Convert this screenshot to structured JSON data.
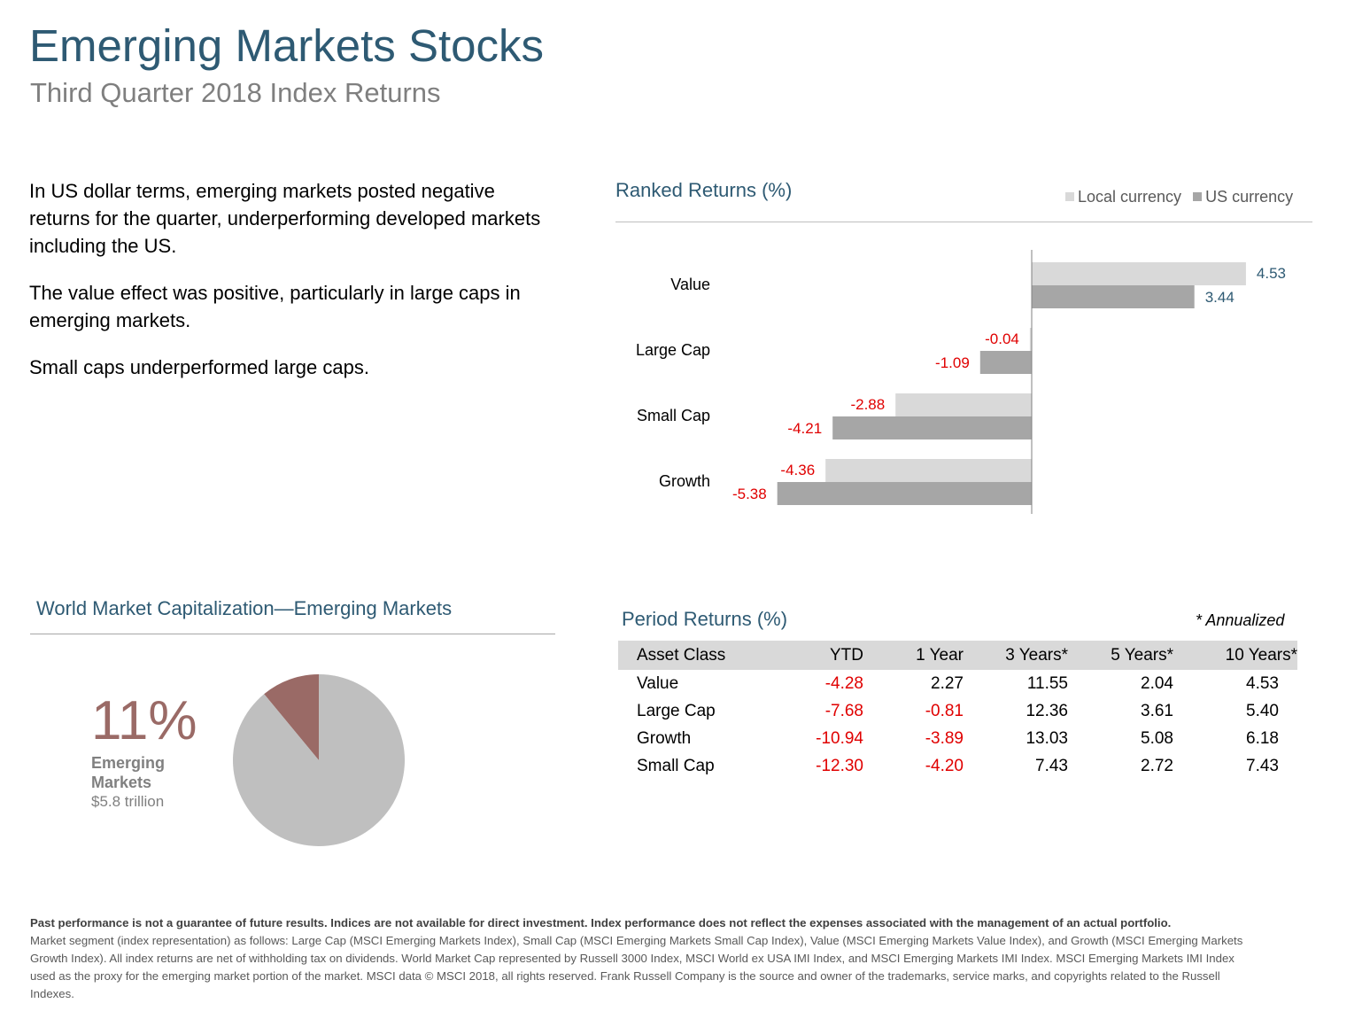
{
  "title": "Emerging Markets Stocks",
  "subtitle": "Third Quarter 2018 Index Returns",
  "commentary": [
    "In US dollar terms, emerging markets posted negative returns for the quarter, underperforming developed markets including the US.",
    "The value effect was positive, particularly in large caps in emerging markets.",
    "Small caps underperformed large caps."
  ],
  "ranked": {
    "title": "Ranked Returns (%)",
    "legend_local": "Local currency",
    "legend_us": "US currency"
  },
  "market_cap": {
    "title": "World Market Capitalization—Emerging Markets",
    "percent": "11%",
    "label": "Emerging Markets",
    "value": "$5.8 trillion"
  },
  "period": {
    "title": "Period Returns (%)",
    "annotation": "* Annualized",
    "headers": [
      "Asset Class",
      "YTD",
      "1 Year",
      "3 Years*",
      "5 Years*",
      "10 Years*"
    ],
    "rows": [
      [
        "Value",
        "-4.28",
        "2.27",
        "11.55",
        "2.04",
        "4.53"
      ],
      [
        "Large Cap",
        "-7.68",
        "-0.81",
        "12.36",
        "3.61",
        "5.40"
      ],
      [
        "Growth",
        "-10.94",
        "-3.89",
        "13.03",
        "5.08",
        "6.18"
      ],
      [
        "Small Cap",
        "-12.30",
        "-4.20",
        "7.43",
        "2.72",
        "7.43"
      ]
    ]
  },
  "footnote": {
    "bold": "Past performance is not a guarantee of future results. Indices are not available for direct investment. Index performance does not reflect the expenses associated with the management of an actual portfolio.",
    "text": "Market segment (index representation) as follows: Large Cap (MSCI Emerging Markets Index), Small Cap (MSCI Emerging Markets Small Cap Index), Value (MSCI Emerging Markets Value Index), and Growth (MSCI Emerging Markets Growth Index). All index returns are net of withholding tax on dividends. World Market Cap represented by Russell 3000 Index, MSCI World ex USA IMI Index, and MSCI Emerging Markets IMI Index. MSCI Emerging Markets IMI Index used as the proxy for the emerging market portion of the market. MSCI data © MSCI 2018, all rights reserved. Frank Russell Company is the source and owner of the trademarks, service marks, and copyrights related to the Russell Indexes."
  },
  "colors": {
    "title": "#2e5a73",
    "local_bar": "#d9d9d9",
    "us_bar": "#a6a6a6",
    "negative": "#e00000",
    "positive_label": "#2e5a73",
    "pie_em": "#9a6a66",
    "pie_rest": "#bfbfbf"
  },
  "chart_data": [
    {
      "type": "bar",
      "orientation": "horizontal",
      "title": "Ranked Returns (%)",
      "categories": [
        "Value",
        "Large Cap",
        "Small Cap",
        "Growth"
      ],
      "series": [
        {
          "name": "Local currency",
          "values": [
            4.53,
            -0.04,
            -2.88,
            -4.36
          ]
        },
        {
          "name": "US currency",
          "values": [
            3.44,
            -1.09,
            -4.21,
            -5.38
          ]
        }
      ],
      "legend": "top-right"
    },
    {
      "type": "pie",
      "title": "World Market Capitalization—Emerging Markets",
      "categories": [
        "Emerging Markets",
        ""
      ],
      "values": [
        11,
        89
      ]
    }
  ]
}
